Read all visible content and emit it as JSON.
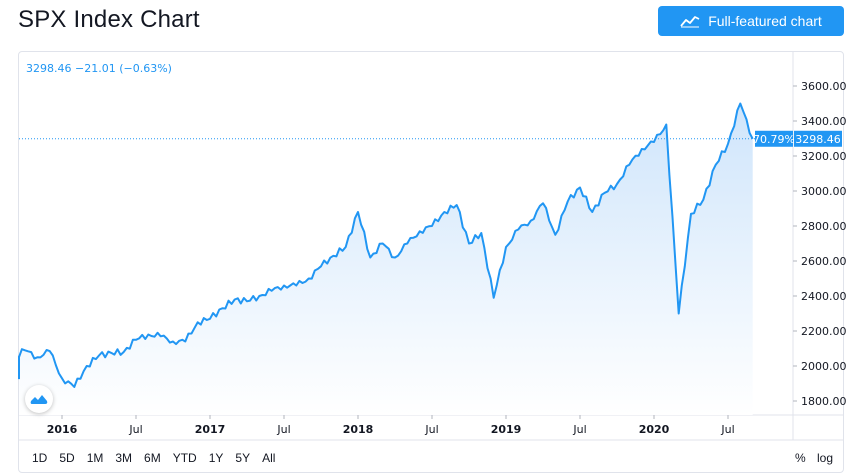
{
  "header": {
    "title": "SPX Index Chart",
    "cta_label": "Full-featured chart",
    "cta_icon": "chart-line-icon"
  },
  "quote": {
    "last": "3298.46",
    "change": "−21.01",
    "change_pct": "(−0.63%)"
  },
  "badges": {
    "percent": "70.79%",
    "price": "3298.46"
  },
  "ranges": [
    "1D",
    "5D",
    "1M",
    "3M",
    "6M",
    "YTD",
    "1Y",
    "5Y",
    "All"
  ],
  "scale_options": {
    "percent": "%",
    "log": "log"
  },
  "colors": {
    "line": "#2196f3",
    "area_top": "#cfe5fb",
    "area_bottom": "#ffffff",
    "badge": "#2196f3",
    "grid": "#f0f3fa"
  },
  "chart_data": {
    "type": "area",
    "xlabel": "",
    "ylabel": "",
    "ylim": [
      1700,
      3700
    ],
    "grid": false,
    "y_ticks": [
      "3600.00",
      "3400.00",
      "3200.00",
      "3000.00",
      "2800.00",
      "2600.00",
      "2400.00",
      "2200.00",
      "2000.00",
      "1800.00"
    ],
    "x_ticks": [
      {
        "label": "2016",
        "date": "2016-01",
        "bold": true
      },
      {
        "label": "Jul",
        "date": "2016-07",
        "bold": false
      },
      {
        "label": "2017",
        "date": "2017-01",
        "bold": true
      },
      {
        "label": "Jul",
        "date": "2017-07",
        "bold": false
      },
      {
        "label": "2018",
        "date": "2018-01",
        "bold": true
      },
      {
        "label": "Jul",
        "date": "2018-07",
        "bold": false
      },
      {
        "label": "2019",
        "date": "2019-01",
        "bold": true
      },
      {
        "label": "Jul",
        "date": "2019-07",
        "bold": false
      },
      {
        "label": "2020",
        "date": "2020-01",
        "bold": true
      },
      {
        "label": "Jul",
        "date": "2020-07",
        "bold": false
      }
    ],
    "series": [
      {
        "name": "",
        "points": [
          [
            "2015-08",
            1925
          ],
          [
            "2015-09",
            2040
          ],
          [
            "2015-10",
            2090
          ],
          [
            "2015-11",
            2050
          ],
          [
            "2015-12",
            2085
          ],
          [
            "2016-01",
            1930
          ],
          [
            "2016-02",
            1880
          ],
          [
            "2016-03",
            2000
          ],
          [
            "2016-04",
            2060
          ],
          [
            "2016-05",
            2075
          ],
          [
            "2016-06",
            2080
          ],
          [
            "2016-07",
            2150
          ],
          [
            "2016-08",
            2180
          ],
          [
            "2016-09",
            2170
          ],
          [
            "2016-10",
            2140
          ],
          [
            "2016-11",
            2140
          ],
          [
            "2016-12",
            2250
          ],
          [
            "2017-01",
            2270
          ],
          [
            "2017-02",
            2330
          ],
          [
            "2017-03",
            2380
          ],
          [
            "2017-04",
            2370
          ],
          [
            "2017-05",
            2400
          ],
          [
            "2017-06",
            2430
          ],
          [
            "2017-07",
            2460
          ],
          [
            "2017-08",
            2460
          ],
          [
            "2017-09",
            2500
          ],
          [
            "2017-10",
            2570
          ],
          [
            "2017-11",
            2630
          ],
          [
            "2017-12",
            2680
          ],
          [
            "2018-01",
            2880
          ],
          [
            "2018-02",
            2620
          ],
          [
            "2018-03",
            2700
          ],
          [
            "2018-04",
            2620
          ],
          [
            "2018-05",
            2700
          ],
          [
            "2018-06",
            2770
          ],
          [
            "2018-07",
            2800
          ],
          [
            "2018-08",
            2880
          ],
          [
            "2018-09",
            2920
          ],
          [
            "2018-10",
            2700
          ],
          [
            "2018-11",
            2760
          ],
          [
            "2018-12",
            2390
          ],
          [
            "2019-01",
            2680
          ],
          [
            "2019-02",
            2780
          ],
          [
            "2019-03",
            2830
          ],
          [
            "2019-04",
            2930
          ],
          [
            "2019-05",
            2750
          ],
          [
            "2019-06",
            2940
          ],
          [
            "2019-07",
            3020
          ],
          [
            "2019-08",
            2880
          ],
          [
            "2019-09",
            2990
          ],
          [
            "2019-10",
            3040
          ],
          [
            "2019-11",
            3150
          ],
          [
            "2019-12",
            3240
          ],
          [
            "2020-01",
            3280
          ],
          [
            "2020-02",
            3380
          ],
          [
            "2020-03",
            2300
          ],
          [
            "2020-04",
            2870
          ],
          [
            "2020-05",
            2950
          ],
          [
            "2020-06",
            3150
          ],
          [
            "2020-07",
            3270
          ],
          [
            "2020-08",
            3500
          ],
          [
            "2020-09",
            3298.46
          ]
        ]
      }
    ]
  }
}
